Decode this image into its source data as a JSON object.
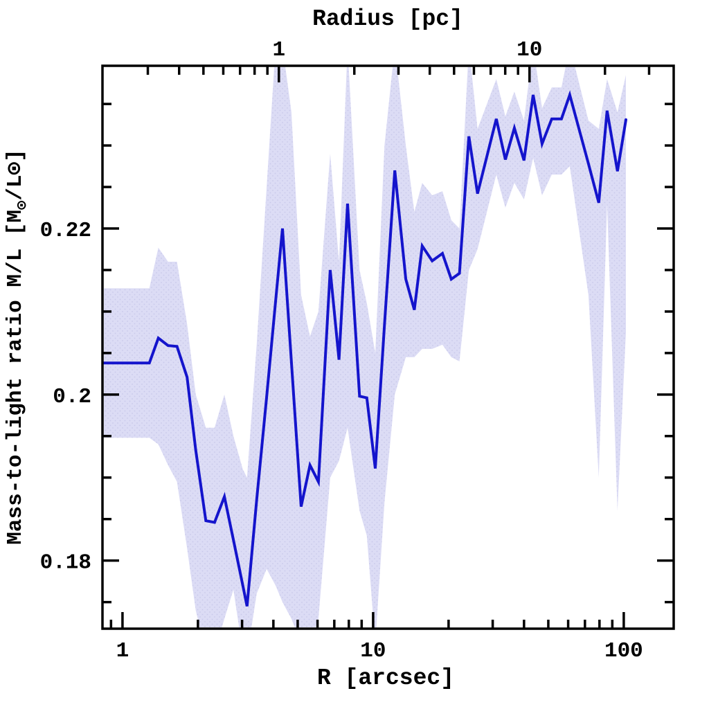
{
  "figure": {
    "background": "#ffffff",
    "frame_color": "#000000",
    "line_color": "#1414cc",
    "band_color": "#dcdcf5",
    "band_dot_color": "#c9c9ea"
  },
  "axes": {
    "x_bottom": {
      "title": "R [arcsec]",
      "scale": "log",
      "range_arcsec": [
        0.832,
        158.2
      ],
      "major_ticks": [
        1,
        10,
        100
      ],
      "tick_labels": [
        "1",
        "10",
        "100"
      ],
      "minor_ticks": [
        0.9,
        2,
        3,
        4,
        5,
        6,
        7,
        8,
        9,
        20,
        30,
        40,
        50,
        60,
        70,
        80,
        90
      ]
    },
    "x_top": {
      "title": "Radius [pc]",
      "scale": "log",
      "arcsec_per_pc": 4.207,
      "major_ticks": [
        1,
        10
      ],
      "tick_labels": [
        "1",
        "10"
      ],
      "minor_ticks": [
        0.2,
        0.3,
        0.4,
        0.5,
        0.6,
        0.7,
        0.8,
        0.9,
        2,
        3,
        4,
        5,
        6,
        7,
        8,
        9,
        20,
        30
      ]
    },
    "y": {
      "title_parts": [
        "Mass-to-light ratio M/L [M",
        "⊙",
        "/L⊙]"
      ],
      "range": [
        0.1718,
        0.2396
      ],
      "major_ticks": [
        0.18,
        0.2,
        0.22
      ],
      "tick_labels": [
        "0.18",
        "0.2",
        "0.22"
      ],
      "minor_step": 0.005
    }
  },
  "chart_data": {
    "type": "line",
    "title": "",
    "xlabel": "R [arcsec]",
    "xlabel_top": "Radius [pc]",
    "ylabel": "Mass-to-light ratio M/L [Msun/Lsun]",
    "x_scale": "log",
    "xlim": [
      0.832,
      158.2
    ],
    "ylim": [
      0.1718,
      0.2396
    ],
    "legend": "none",
    "grid": false,
    "x_arcsec": [
      0.83,
      1.28,
      1.39,
      1.52,
      1.65,
      1.81,
      1.96,
      2.15,
      2.33,
      2.55,
      2.77,
      3.02,
      3.14,
      3.43,
      3.76,
      4.08,
      4.35,
      4.72,
      5.16,
      5.6,
      6.05,
      6.74,
      7.31,
      7.91,
      8.83,
      9.44,
      10.2,
      11.1,
      12.2,
      13.5,
      14.6,
      15.7,
      17.2,
      18.9,
      20.5,
      22.1,
      24.1,
      26.1,
      31.0,
      33.7,
      36.6,
      40.0,
      43.5,
      47.2,
      51.6,
      56.4,
      60.9,
      72.3,
      79.5,
      85.8,
      94.4,
      102.0
    ],
    "series": [
      {
        "name": "mass-to-light ratio profile",
        "values": [
          0.2038,
          0.2038,
          0.2068,
          0.2059,
          0.2058,
          0.2021,
          0.1933,
          0.1848,
          0.1846,
          0.1877,
          0.1825,
          0.177,
          0.1745,
          0.1873,
          0.1997,
          0.2112,
          0.22,
          0.2039,
          0.1865,
          0.1915,
          0.1895,
          0.215,
          0.2042,
          0.223,
          0.1998,
          0.1996,
          0.1911,
          0.2084,
          0.227,
          0.2139,
          0.2102,
          0.2179,
          0.2161,
          0.217,
          0.2139,
          0.2146,
          0.2311,
          0.2242,
          0.2332,
          0.2283,
          0.2321,
          0.2282,
          0.2361,
          0.2302,
          0.2332,
          0.2332,
          0.2361,
          0.2278,
          0.2231,
          0.2342,
          0.2269,
          0.2331
        ]
      },
      {
        "name": "uncertainty band upper",
        "values": [
          0.2128,
          0.2128,
          0.2177,
          0.216,
          0.216,
          0.2085,
          0.2,
          0.196,
          0.196,
          0.2,
          0.195,
          0.191,
          0.19,
          0.206,
          0.225,
          0.242,
          0.242,
          0.234,
          0.212,
          0.207,
          0.21,
          0.229,
          0.216,
          0.242,
          0.215,
          0.211,
          0.205,
          0.23,
          0.242,
          0.23,
          0.222,
          0.2255,
          0.224,
          0.2245,
          0.221,
          0.22,
          0.242,
          0.232,
          0.238,
          0.2335,
          0.2365,
          0.233,
          0.242,
          0.2345,
          0.237,
          0.237,
          0.242,
          0.233,
          0.232,
          0.238,
          0.234,
          0.2385
        ]
      },
      {
        "name": "uncertainty band lower",
        "values": [
          0.1948,
          0.1948,
          0.194,
          0.1915,
          0.1895,
          0.1815,
          0.174,
          0.169,
          0.169,
          0.173,
          0.1765,
          0.169,
          0.1685,
          0.176,
          0.179,
          0.177,
          0.175,
          0.173,
          0.17,
          0.17,
          0.173,
          0.19,
          0.192,
          0.196,
          0.186,
          0.183,
          0.17,
          0.187,
          0.2,
          0.2045,
          0.2045,
          0.2055,
          0.2055,
          0.206,
          0.2045,
          0.204,
          0.215,
          0.2175,
          0.2265,
          0.2225,
          0.2255,
          0.2235,
          0.2285,
          0.224,
          0.2265,
          0.2265,
          0.2275,
          0.212,
          0.19,
          0.223,
          0.186,
          0.2075
        ]
      }
    ]
  }
}
